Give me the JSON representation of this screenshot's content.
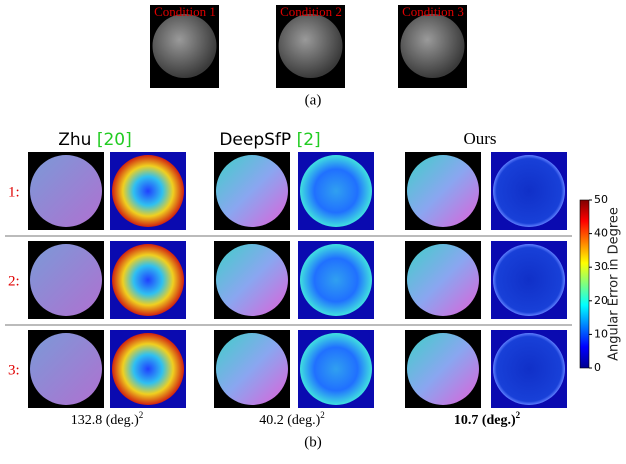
{
  "panel_a": {
    "conditions": [
      "Condition 1",
      "Condition 2",
      "Condition 3"
    ],
    "caption": "(a)"
  },
  "panel_b": {
    "methods": [
      {
        "name": "Zhu",
        "citation": "[20]",
        "score": "132.8 (deg.)",
        "exponent": "2"
      },
      {
        "name": "DeepSfP",
        "citation": "[2]",
        "score": "40.2 (deg.)",
        "exponent": "2"
      },
      {
        "name": "Ours",
        "citation": null,
        "score": "10.7 (deg.)",
        "exponent": "2"
      }
    ],
    "rows": [
      "1:",
      "2:",
      "3:"
    ],
    "colorbar": {
      "label": "Angular Error in Degree",
      "ticks": [
        0,
        10,
        20,
        30,
        40,
        50
      ]
    },
    "caption": "(b)"
  }
}
